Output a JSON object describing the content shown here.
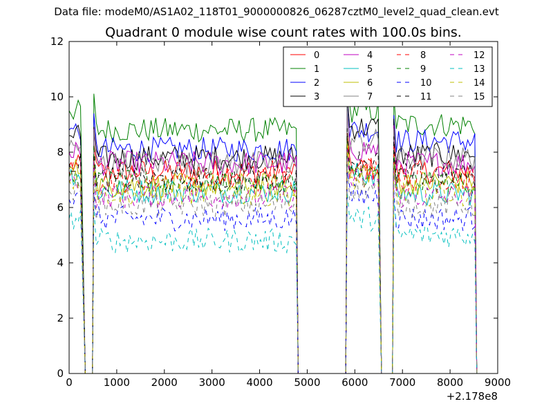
{
  "header": {
    "data_file": "Data file: modeM0/AS1A02_118T01_9000000826_06287cztM0_level2_quad_clean.evt"
  },
  "chart_data": {
    "type": "line",
    "title": "Quadrant 0 module wise count rates with 100.0s bins.",
    "xlabel": "",
    "ylabel": "",
    "x_offset_label": "+2.178e8",
    "xlim": [
      0,
      9000
    ],
    "ylim": [
      0,
      12
    ],
    "xticks": [
      0,
      1000,
      2000,
      3000,
      4000,
      5000,
      6000,
      7000,
      8000,
      9000
    ],
    "yticks": [
      0,
      2,
      4,
      6,
      8,
      10,
      12
    ],
    "grid": false,
    "legend": {
      "placement": "top-right",
      "columns": 4
    },
    "segments": [
      [
        0,
        500
      ],
      [
        500,
        5000
      ],
      [
        5700,
        6600
      ],
      [
        6800,
        8600
      ]
    ],
    "series": [
      {
        "name": "0",
        "color": "#ff0000",
        "dashed": false,
        "levels": [
          7.5,
          7.3,
          7.4,
          7.3
        ]
      },
      {
        "name": "1",
        "color": "#008000",
        "dashed": false,
        "levels": [
          9.5,
          8.8,
          9.5,
          9.0
        ]
      },
      {
        "name": "2",
        "color": "#0000ff",
        "dashed": false,
        "levels": [
          8.8,
          8.1,
          8.8,
          8.4
        ]
      },
      {
        "name": "3",
        "color": "#000000",
        "dashed": false,
        "levels": [
          8.6,
          7.8,
          8.9,
          7.9
        ]
      },
      {
        "name": "4",
        "color": "#bf00bf",
        "dashed": false,
        "levels": [
          8.0,
          7.6,
          8.1,
          7.6
        ]
      },
      {
        "name": "5",
        "color": "#00bfbf",
        "dashed": false,
        "levels": [
          7.2,
          6.6,
          7.2,
          6.5
        ]
      },
      {
        "name": "6",
        "color": "#bfbf00",
        "dashed": false,
        "levels": [
          7.4,
          6.8,
          7.3,
          6.9
        ]
      },
      {
        "name": "7",
        "color": "#808080",
        "dashed": false,
        "levels": [
          8.2,
          7.6,
          8.4,
          7.8
        ]
      },
      {
        "name": "8",
        "color": "#ff0000",
        "dashed": true,
        "levels": [
          7.3,
          7.0,
          7.4,
          7.0
        ]
      },
      {
        "name": "9",
        "color": "#008000",
        "dashed": true,
        "levels": [
          7.1,
          6.9,
          7.2,
          6.9
        ]
      },
      {
        "name": "10",
        "color": "#0000ff",
        "dashed": true,
        "levels": [
          6.3,
          5.6,
          6.4,
          5.6
        ]
      },
      {
        "name": "11",
        "color": "#000000",
        "dashed": true,
        "levels": [
          7.6,
          7.0,
          7.7,
          7.2
        ]
      },
      {
        "name": "12",
        "color": "#bf00bf",
        "dashed": true,
        "levels": [
          6.9,
          6.4,
          7.0,
          6.4
        ]
      },
      {
        "name": "13",
        "color": "#00bfbf",
        "dashed": true,
        "levels": [
          5.6,
          4.8,
          5.6,
          5.0
        ]
      },
      {
        "name": "14",
        "color": "#bfbf00",
        "dashed": true,
        "levels": [
          7.0,
          6.5,
          7.0,
          6.5
        ]
      },
      {
        "name": "15",
        "color": "#808080",
        "dashed": true,
        "levels": [
          6.6,
          6.1,
          6.7,
          6.1
        ]
      }
    ]
  }
}
